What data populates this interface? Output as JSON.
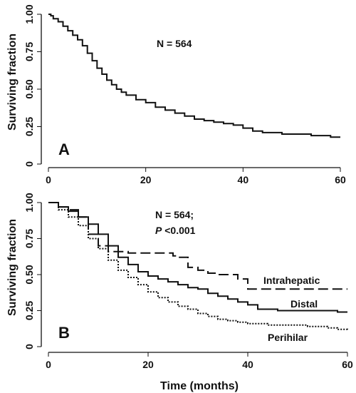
{
  "chart_data": [
    {
      "type": "line",
      "panel_label": "A",
      "annotation": "N = 564",
      "ylabel": "Surviving fraction",
      "xlabel": "",
      "xlim": [
        0,
        60
      ],
      "ylim": [
        0,
        1
      ],
      "x_ticks": [
        "0",
        "20",
        "40",
        "60"
      ],
      "y_ticks": [
        "0",
        "0.25",
        "0.50",
        "0.75",
        "1.00"
      ],
      "series": [
        {
          "style": "solid",
          "points": [
            [
              0,
              1.0
            ],
            [
              0.5,
              0.99
            ],
            [
              1,
              0.97
            ],
            [
              2,
              0.95
            ],
            [
              3,
              0.92
            ],
            [
              4,
              0.89
            ],
            [
              5,
              0.86
            ],
            [
              6,
              0.83
            ],
            [
              7,
              0.79
            ],
            [
              8,
              0.74
            ],
            [
              9,
              0.69
            ],
            [
              10,
              0.64
            ],
            [
              11,
              0.6
            ],
            [
              12,
              0.56
            ],
            [
              13,
              0.53
            ],
            [
              14,
              0.5
            ],
            [
              15,
              0.48
            ],
            [
              16,
              0.46
            ],
            [
              18,
              0.43
            ],
            [
              20,
              0.41
            ],
            [
              22,
              0.38
            ],
            [
              24,
              0.36
            ],
            [
              26,
              0.34
            ],
            [
              28,
              0.32
            ],
            [
              30,
              0.3
            ],
            [
              32,
              0.29
            ],
            [
              34,
              0.28
            ],
            [
              36,
              0.27
            ],
            [
              38,
              0.26
            ],
            [
              40,
              0.24
            ],
            [
              42,
              0.22
            ],
            [
              44,
              0.21
            ],
            [
              46,
              0.21
            ],
            [
              48,
              0.2
            ],
            [
              50,
              0.2
            ],
            [
              52,
              0.2
            ],
            [
              54,
              0.19
            ],
            [
              56,
              0.19
            ],
            [
              58,
              0.18
            ],
            [
              60,
              0.18
            ]
          ]
        }
      ]
    },
    {
      "type": "line",
      "panel_label": "B",
      "annotation_line1": "N = 564;",
      "annotation_p": "P",
      "annotation_line2_rest": " <0.001",
      "ylabel": "Surviving fraction",
      "xlabel": "Time (months)",
      "xlim": [
        0,
        60
      ],
      "ylim": [
        0,
        1
      ],
      "x_ticks": [
        "0",
        "20",
        "40",
        "60"
      ],
      "y_ticks": [
        "0",
        "0.25",
        "0.50",
        "0.75",
        "1.00"
      ],
      "series": [
        {
          "name": "Intrahepatic",
          "style": "dashed",
          "points": [
            [
              0,
              1.0
            ],
            [
              2,
              0.97
            ],
            [
              4,
              0.95
            ],
            [
              6,
              0.9
            ],
            [
              8,
              0.78
            ],
            [
              10,
              0.7
            ],
            [
              12,
              0.66
            ],
            [
              14,
              0.66
            ],
            [
              16,
              0.65
            ],
            [
              20,
              0.65
            ],
            [
              24,
              0.65
            ],
            [
              25,
              0.63
            ],
            [
              26,
              0.62
            ],
            [
              28,
              0.55
            ],
            [
              30,
              0.53
            ],
            [
              32,
              0.51
            ],
            [
              34,
              0.5
            ],
            [
              36,
              0.5
            ],
            [
              38,
              0.47
            ],
            [
              40,
              0.4
            ],
            [
              44,
              0.4
            ],
            [
              50,
              0.4
            ],
            [
              60,
              0.4
            ]
          ]
        },
        {
          "name": "Distal",
          "style": "solid",
          "points": [
            [
              0,
              1.0
            ],
            [
              2,
              0.97
            ],
            [
              4,
              0.94
            ],
            [
              6,
              0.9
            ],
            [
              8,
              0.85
            ],
            [
              10,
              0.78
            ],
            [
              12,
              0.7
            ],
            [
              14,
              0.62
            ],
            [
              16,
              0.57
            ],
            [
              18,
              0.52
            ],
            [
              20,
              0.49
            ],
            [
              22,
              0.47
            ],
            [
              24,
              0.45
            ],
            [
              26,
              0.43
            ],
            [
              28,
              0.41
            ],
            [
              30,
              0.4
            ],
            [
              32,
              0.37
            ],
            [
              34,
              0.35
            ],
            [
              36,
              0.33
            ],
            [
              38,
              0.31
            ],
            [
              40,
              0.29
            ],
            [
              42,
              0.26
            ],
            [
              44,
              0.26
            ],
            [
              46,
              0.25
            ],
            [
              50,
              0.25
            ],
            [
              54,
              0.25
            ],
            [
              58,
              0.24
            ],
            [
              60,
              0.24
            ]
          ]
        },
        {
          "name": "Perihilar",
          "style": "dotted",
          "points": [
            [
              0,
              1.0
            ],
            [
              2,
              0.95
            ],
            [
              4,
              0.9
            ],
            [
              6,
              0.84
            ],
            [
              8,
              0.75
            ],
            [
              10,
              0.68
            ],
            [
              12,
              0.6
            ],
            [
              14,
              0.53
            ],
            [
              16,
              0.48
            ],
            [
              18,
              0.43
            ],
            [
              20,
              0.38
            ],
            [
              22,
              0.34
            ],
            [
              24,
              0.31
            ],
            [
              26,
              0.28
            ],
            [
              28,
              0.26
            ],
            [
              30,
              0.23
            ],
            [
              32,
              0.21
            ],
            [
              34,
              0.19
            ],
            [
              36,
              0.18
            ],
            [
              38,
              0.17
            ],
            [
              40,
              0.16
            ],
            [
              44,
              0.15
            ],
            [
              48,
              0.15
            ],
            [
              52,
              0.14
            ],
            [
              56,
              0.13
            ],
            [
              58,
              0.12
            ],
            [
              60,
              0.11
            ]
          ]
        }
      ]
    }
  ]
}
